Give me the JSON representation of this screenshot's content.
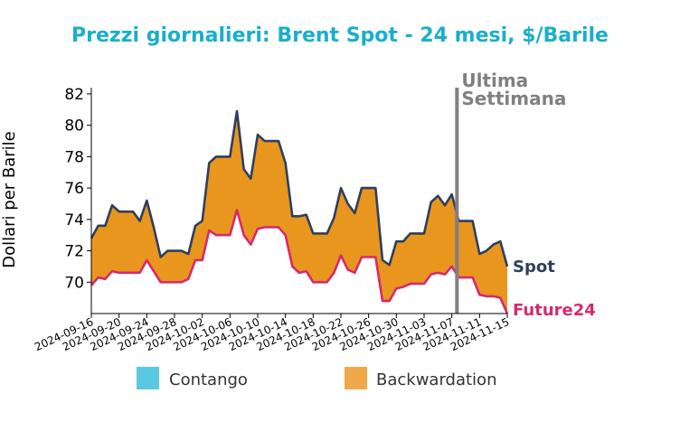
{
  "colors": {
    "title": "#1aafc9",
    "spot_line": "#2e3f5c",
    "future_line": "#d6296e",
    "backwardation_fill": "#e8961e",
    "contango_swatch": "#5bc8e2",
    "backwardation_swatch": "#efa84a",
    "week_marker": "#808080"
  },
  "chart_data": {
    "type": "area",
    "title": "Prezzi giornalieri: Brent Spot - 24 mesi, $/Barile",
    "ylabel": "Dollari per Barile",
    "xlabel": "",
    "ylim": [
      68,
      82.4
    ],
    "yticks": [
      70,
      72,
      74,
      76,
      78,
      80,
      82
    ],
    "xticks": [
      "2024-09-16",
      "2024-09-20",
      "2024-09-24",
      "2024-09-28",
      "2024-10-02",
      "2024-10-06",
      "2024-10-10",
      "2024-10-14",
      "2024-10-18",
      "2024-10-22",
      "2024-10-26",
      "2024-10-30",
      "2024-11-03",
      "2024-11-07",
      "2024-11-11",
      "2024-11-15"
    ],
    "x": [
      "2024-09-16",
      "2024-09-17",
      "2024-09-18",
      "2024-09-19",
      "2024-09-20",
      "2024-09-21",
      "2024-09-22",
      "2024-09-23",
      "2024-09-24",
      "2024-09-25",
      "2024-09-26",
      "2024-09-27",
      "2024-09-28",
      "2024-09-29",
      "2024-09-30",
      "2024-10-01",
      "2024-10-02",
      "2024-10-03",
      "2024-10-04",
      "2024-10-05",
      "2024-10-06",
      "2024-10-07",
      "2024-10-08",
      "2024-10-09",
      "2024-10-10",
      "2024-10-11",
      "2024-10-12",
      "2024-10-13",
      "2024-10-14",
      "2024-10-15",
      "2024-10-16",
      "2024-10-17",
      "2024-10-18",
      "2024-10-19",
      "2024-10-20",
      "2024-10-21",
      "2024-10-22",
      "2024-10-23",
      "2024-10-24",
      "2024-10-25",
      "2024-10-26",
      "2024-10-27",
      "2024-10-28",
      "2024-10-29",
      "2024-10-30",
      "2024-10-31",
      "2024-11-01",
      "2024-11-02",
      "2024-11-03",
      "2024-11-04",
      "2024-11-05",
      "2024-11-06",
      "2024-11-07",
      "2024-11-08",
      "2024-11-09",
      "2024-11-10",
      "2024-11-11",
      "2024-11-12",
      "2024-11-13",
      "2024-11-14",
      "2024-11-15"
    ],
    "series": [
      {
        "name": "Spot",
        "values": [
          72.8,
          73.6,
          73.6,
          74.9,
          74.5,
          74.5,
          74.5,
          73.9,
          75.2,
          73.5,
          71.6,
          72.0,
          72.0,
          72.0,
          71.8,
          73.6,
          73.9,
          77.6,
          78.0,
          78.0,
          78.0,
          80.9,
          77.2,
          76.6,
          79.4,
          79.0,
          79.0,
          79.0,
          77.6,
          74.2,
          74.2,
          74.3,
          73.1,
          73.1,
          73.1,
          74.1,
          76.0,
          75.0,
          74.4,
          76.0,
          76.0,
          76.0,
          71.4,
          71.1,
          72.6,
          72.6,
          73.1,
          73.1,
          73.1,
          75.1,
          75.5,
          74.9,
          75.6,
          73.9,
          73.9,
          73.9,
          71.8,
          72.0,
          72.4,
          72.6,
          71.0
        ]
      },
      {
        "name": "Future24",
        "values": [
          69.8,
          70.3,
          70.2,
          70.7,
          70.6,
          70.6,
          70.6,
          70.6,
          71.4,
          70.7,
          70.0,
          70.0,
          70.0,
          70.0,
          70.2,
          71.4,
          71.4,
          73.3,
          73.0,
          73.0,
          73.0,
          74.6,
          73.0,
          72.4,
          73.4,
          73.5,
          73.5,
          73.5,
          73.0,
          71.0,
          70.6,
          70.7,
          70.0,
          70.0,
          70.0,
          70.6,
          71.7,
          70.8,
          70.6,
          71.6,
          71.6,
          71.6,
          68.8,
          68.8,
          69.6,
          69.7,
          69.9,
          69.9,
          69.9,
          70.5,
          70.6,
          70.5,
          71.0,
          70.3,
          70.3,
          70.3,
          69.2,
          69.1,
          69.1,
          69.0,
          68.0
        ]
      }
    ],
    "legend": [
      {
        "label": "Contango",
        "color": "#5bc8e2"
      },
      {
        "label": "Backwardation",
        "color": "#efa84a"
      }
    ],
    "legend_position": "bottom",
    "annotation": {
      "text_line1": "Ultima",
      "text_line2": "Settimana",
      "x": "2024-11-08"
    },
    "end_labels": {
      "spot": "Spot",
      "future": "Future24"
    },
    "grid": false
  }
}
